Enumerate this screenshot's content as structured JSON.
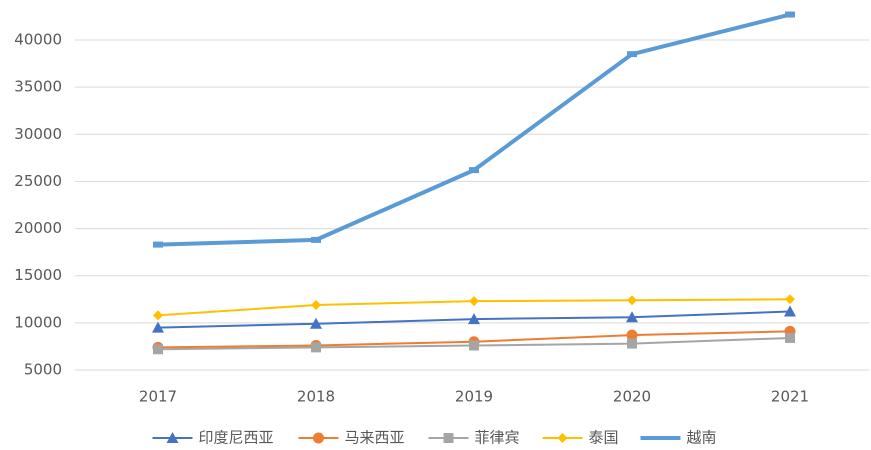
{
  "chart_data": {
    "type": "line",
    "categories": [
      "2017",
      "2018",
      "2019",
      "2020",
      "2021"
    ],
    "series": [
      {
        "name": "印度尼西亚",
        "color": "#4472c4",
        "marker": "triangle",
        "values": [
          9500,
          9900,
          10400,
          10600,
          11200
        ]
      },
      {
        "name": "马来西亚",
        "color": "#ed7d31",
        "marker": "circle",
        "values": [
          7400,
          7600,
          8000,
          8700,
          9100
        ]
      },
      {
        "name": "菲律宾",
        "color": "#a5a5a5",
        "marker": "square",
        "values": [
          7200,
          7400,
          7600,
          7800,
          8400
        ]
      },
      {
        "name": "泰国",
        "color": "#ffc000",
        "marker": "diamond",
        "values": [
          10800,
          11900,
          12300,
          12400,
          12500
        ]
      },
      {
        "name": "越南",
        "color": "#5b9bd5",
        "marker": "dash",
        "values": [
          18300,
          18800,
          26200,
          38500,
          42700
        ]
      }
    ],
    "ylim": [
      5000,
      40000
    ],
    "yticks": [
      5000,
      10000,
      15000,
      20000,
      25000,
      30000,
      35000,
      40000
    ],
    "grid": true,
    "legend": "bottom"
  }
}
